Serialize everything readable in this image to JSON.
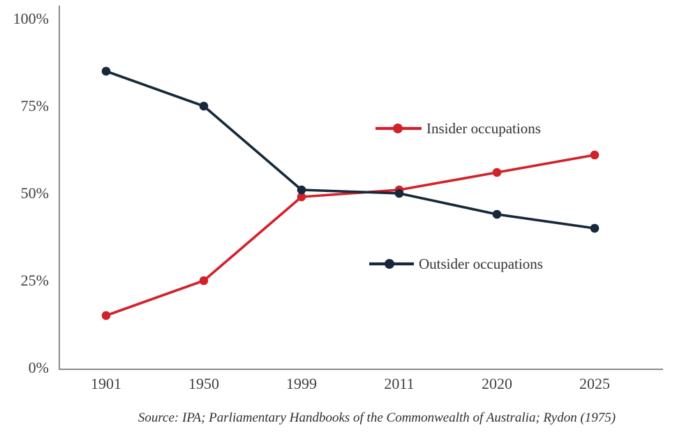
{
  "chart_data": {
    "type": "line",
    "title": "",
    "xlabel": "",
    "ylabel": "",
    "categories": [
      "1901",
      "1950",
      "1999",
      "2011",
      "2020",
      "2025"
    ],
    "series": [
      {
        "id": "insider-occupations",
        "name": "Insider occupations",
        "color": "#d1222b",
        "values": [
          15,
          25,
          49,
          51,
          56,
          61
        ]
      },
      {
        "id": "outsider-occupations",
        "name": "Outsider occupations",
        "color": "#16283a",
        "values": [
          85,
          75,
          51,
          50,
          44,
          40
        ]
      }
    ],
    "ylim": [
      0,
      100
    ],
    "yticks": [
      0,
      25,
      50,
      75,
      100
    ],
    "ytick_labels": [
      "0%",
      "25%",
      "50%",
      "75%",
      "100%"
    ],
    "grid": false,
    "legend_position": "inline-right",
    "source_note": "Source: IPA; Parliamentary Handbooks of the Commonwealth of Australia; Rydon (1975)"
  },
  "colors": {
    "insider": "#d1222b",
    "outsider": "#16283a",
    "axis": "#8a8a8a",
    "tick_text": "#3f3f3f"
  }
}
